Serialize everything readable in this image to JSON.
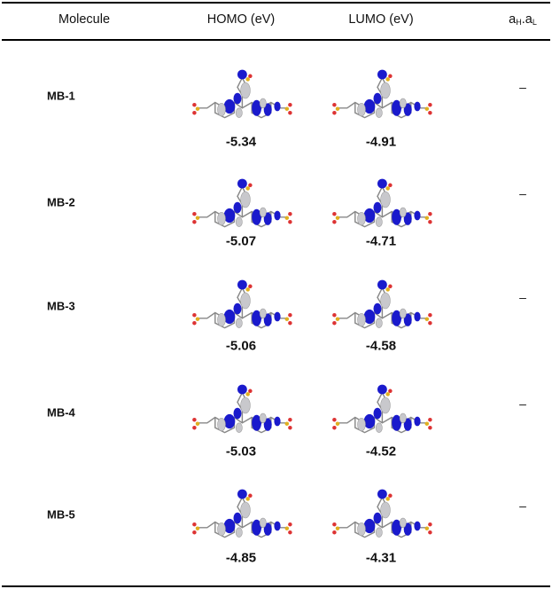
{
  "table": {
    "header": [
      "Molecule",
      "HOMO (eV)",
      "LUMO (eV)",
      [
        "a",
        "H",
        ".a",
        "L"
      ]
    ],
    "rows": [
      [
        "MB-1",
        -5.34,
        -4.91,
        "–"
      ],
      [
        "MB-2",
        -5.07,
        -4.71,
        "–"
      ],
      [
        "MB-3",
        -5.06,
        -4.58,
        "–"
      ],
      [
        "MB-4",
        -5.03,
        -4.52,
        "–"
      ],
      [
        "MB-5",
        -4.85,
        -4.31,
        "–"
      ]
    ]
  }
}
